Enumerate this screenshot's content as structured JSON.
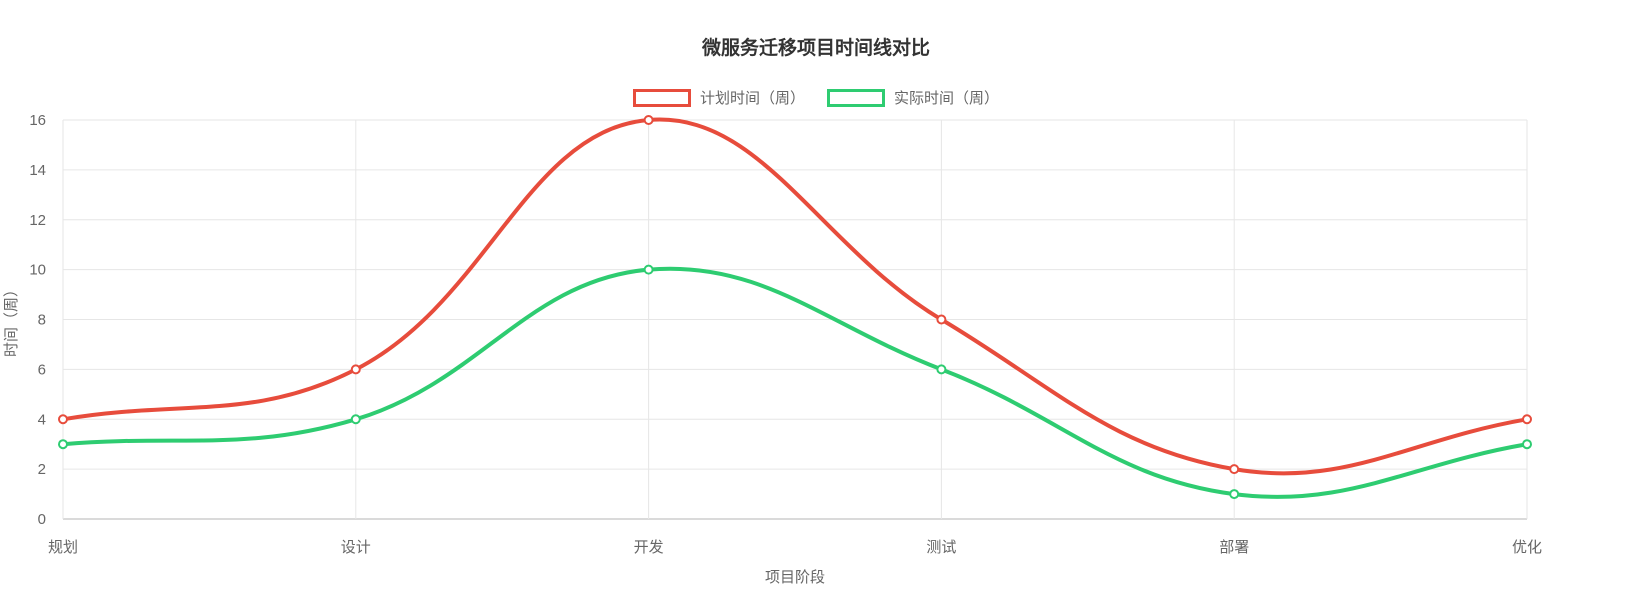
{
  "chart_data": {
    "type": "line",
    "title": "微服务迁移项目时间线对比",
    "categories": [
      "规划",
      "设计",
      "开发",
      "测试",
      "部署",
      "优化"
    ],
    "series": [
      {
        "name": "计划时间（周）",
        "color": "#e74c3c",
        "values": [
          4,
          6,
          16,
          8,
          2,
          4
        ]
      },
      {
        "name": "实际时间（周）",
        "color": "#2ecc71",
        "values": [
          3,
          4,
          10,
          6,
          1,
          3
        ]
      }
    ],
    "xlabel": "项目阶段",
    "ylabel": "时间（周）",
    "ylim": [
      0,
      16
    ],
    "yticks": [
      0,
      2,
      4,
      6,
      8,
      10,
      12,
      14,
      16
    ],
    "grid": true,
    "smooth": true,
    "legend_position": "top",
    "point_style": "hollow-circle",
    "grid_color": "#e6e6e6",
    "axis_line_color": "#b5b5b5",
    "text_color": "#666666",
    "title_color": "#333333"
  }
}
